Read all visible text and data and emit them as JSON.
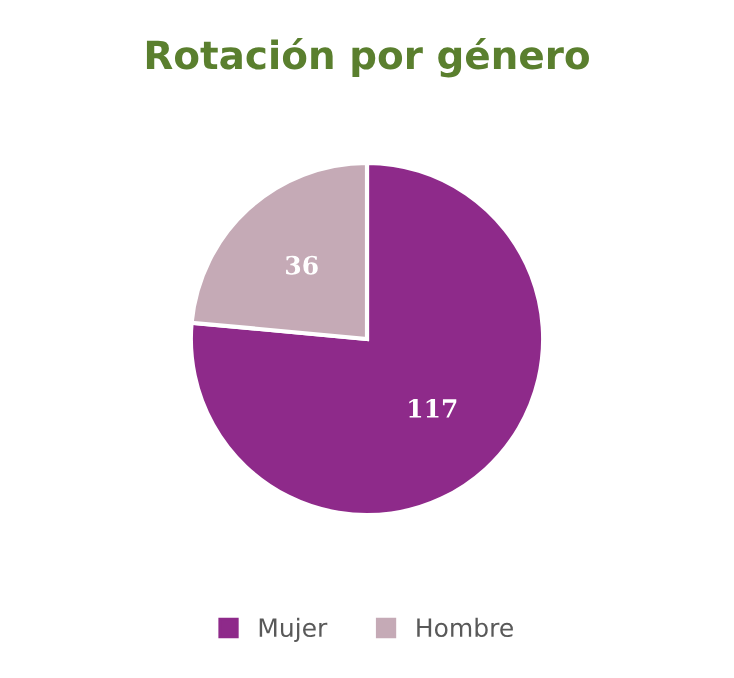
{
  "chart_data": {
    "type": "pie",
    "title": "Rotación por género",
    "categories": [
      "Mujer",
      "Hombre"
    ],
    "values": [
      117,
      36
    ],
    "colors": [
      "#8e2a8a",
      "#c5aab6"
    ],
    "data_labels": true,
    "legend": "bottom"
  }
}
